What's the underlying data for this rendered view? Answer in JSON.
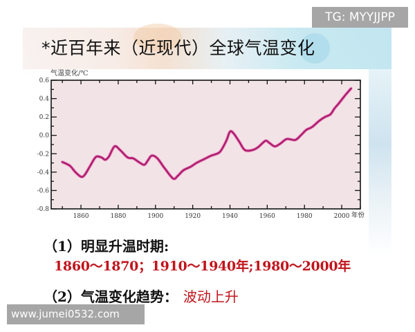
{
  "slide": {
    "title": "*近百年来（近现代）全球气温变化",
    "point1_label": "（1）明显升温时期:",
    "point1_answer": "1860～1870；1910～1940年;1980～2000年",
    "point2_label": "（2）气温变化趋势：",
    "point2_answer": "波动上升"
  },
  "watermarks": {
    "top_right": "TG: MYYJJPP",
    "bottom_left": "www.jumei0532.com"
  },
  "colors": {
    "line": "#b0206e",
    "plot_bg": "#f2e4e6",
    "answer_red": "#c0141c",
    "watermark_bg": "#a6a6a6"
  },
  "chart_data": {
    "type": "line",
    "title": "",
    "xlabel": "年份",
    "ylabel": "气温变化/℃",
    "xlim": [
      1844,
      2010
    ],
    "ylim": [
      -0.8,
      0.6
    ],
    "x_ticks": [
      1860,
      1880,
      1900,
      1920,
      1940,
      1960,
      1980,
      2000
    ],
    "y_ticks": [
      0.6,
      0.4,
      0.2,
      0.0,
      -0.2,
      -0.4,
      -0.6,
      -0.8
    ],
    "y_tick_labels": [
      "0.6",
      "0.4",
      "0.2",
      "0.0",
      "-0.2",
      "-0.4",
      "-0.6",
      "-0.8"
    ],
    "grid": false,
    "series": [
      {
        "name": "全球气温变化",
        "x": [
          1850,
          1854,
          1857,
          1860,
          1862,
          1865,
          1868,
          1871,
          1873,
          1875,
          1878,
          1881,
          1885,
          1888,
          1891,
          1894,
          1896,
          1898,
          1901,
          1905,
          1909.5,
          1912,
          1915,
          1919,
          1922,
          1926,
          1930,
          1933,
          1935,
          1938,
          1940,
          1942,
          1945,
          1948,
          1952,
          1955,
          1959,
          1961,
          1964,
          1967,
          1970.5,
          1975,
          1978,
          1981,
          1984,
          1988,
          1991,
          1994,
          1996,
          1998.5,
          2002,
          2005
        ],
        "values": [
          -0.29,
          -0.33,
          -0.4,
          -0.45,
          -0.43,
          -0.33,
          -0.235,
          -0.24,
          -0.265,
          -0.23,
          -0.12,
          -0.16,
          -0.24,
          -0.25,
          -0.29,
          -0.32,
          -0.27,
          -0.22,
          -0.25,
          -0.36,
          -0.47,
          -0.44,
          -0.38,
          -0.34,
          -0.3,
          -0.26,
          -0.22,
          -0.2,
          -0.17,
          -0.06,
          0.04,
          0.02,
          -0.07,
          -0.16,
          -0.16,
          -0.13,
          -0.06,
          -0.08,
          -0.12,
          -0.09,
          -0.04,
          -0.05,
          0.0,
          0.06,
          0.09,
          0.16,
          0.2,
          0.23,
          0.29,
          0.35,
          0.44,
          0.51
        ]
      }
    ]
  }
}
